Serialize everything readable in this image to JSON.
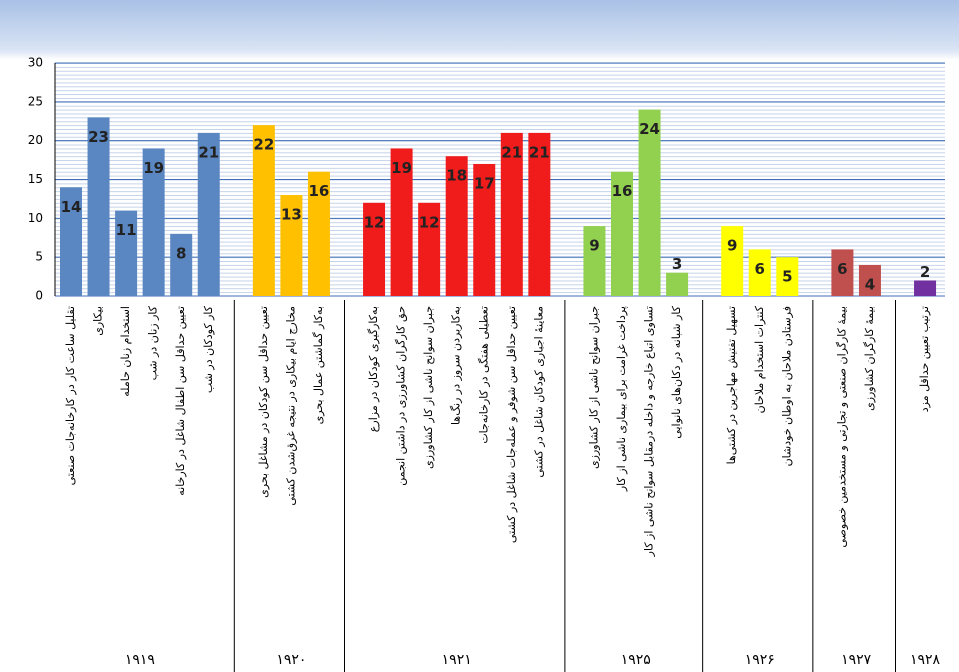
{
  "chart_data": {
    "type": "bar",
    "ylim": [
      0,
      30
    ],
    "yticks": [
      0,
      5,
      10,
      15,
      20,
      25,
      30
    ],
    "grid": true,
    "series": [
      {
        "name": "۱۹۱۹",
        "color": "#5a87c2",
        "categories": [
          "تقلیل ساعت کار در کارخانه‌جات صنعتی",
          "بیکاری",
          "استخدام زنان حامله",
          "کار زنان در شب",
          "تعیین حداقل سن اطفال شاغل در کارخانه",
          "کار کودکان در شب"
        ],
        "values": [
          14,
          23,
          11,
          19,
          8,
          21
        ]
      },
      {
        "name": "۱۹۲۰",
        "color": "#ffc000",
        "categories": [
          "تعیین حداقل سن کودکان در مشاغل بحری",
          "مخارج ایام بیکاری در نتیجه غرق‌شدن کشتی",
          "به‌کار گماشتن عمال بحری"
        ],
        "values": [
          22,
          13,
          16
        ]
      },
      {
        "name": "۱۹۲۱",
        "color": "#f01c1c",
        "categories": [
          "به‌کارگیری کودکان در مزارع",
          "حق کارگران کشاورزی در داشتن انجمن",
          "جبران سوانح ناشی از کار کشاورزی",
          "به‌کاربردن سروز در رنگ‌ها",
          "تعطیلی هفتگی در کارخانه‌جات",
          "تعیین حداقل سن شوفر و عمله‌جات شاغل در کشتی",
          "معاینهٔ اجباری کودکان شاغل در کشتی"
        ],
        "values": [
          12,
          19,
          12,
          18,
          17,
          21,
          21
        ]
      },
      {
        "name": "۱۹۲۵",
        "color": "#92d050",
        "categories": [
          "جبران سوانح ناشی از کار کشاورزی",
          "پرداخت غرامت برای بیماری ناشی از کار",
          "تساوی اتباع خارجه و داخله درمقابل سوانح ناشی از کار",
          "کار شبانه در دکان‌های نانوایی"
        ],
        "values": [
          9,
          16,
          24,
          3
        ]
      },
      {
        "name": "۱۹۲۶",
        "color": "#ffff00",
        "categories": [
          "تسهیل تفتیش مهاجرین در کشتی‌ها",
          "کنترات استخدام ملاحان",
          "فرستادن ملاحان به اوطان خودشان"
        ],
        "values": [
          9,
          6,
          5
        ]
      },
      {
        "name": "۱۹۲۷",
        "color": "#c0504d",
        "categories": [
          "بیمهٔ کارگران صنعتی و تجارتی و مستخدمین خصوصی",
          "بیمهٔ کارگران کشاورزی"
        ],
        "values": [
          6,
          4
        ]
      },
      {
        "name": "۱۹۲۸",
        "color": "#7030a0",
        "categories": [
          "ترتیب تعیین حداقل مزد"
        ],
        "values": [
          2
        ]
      }
    ]
  }
}
